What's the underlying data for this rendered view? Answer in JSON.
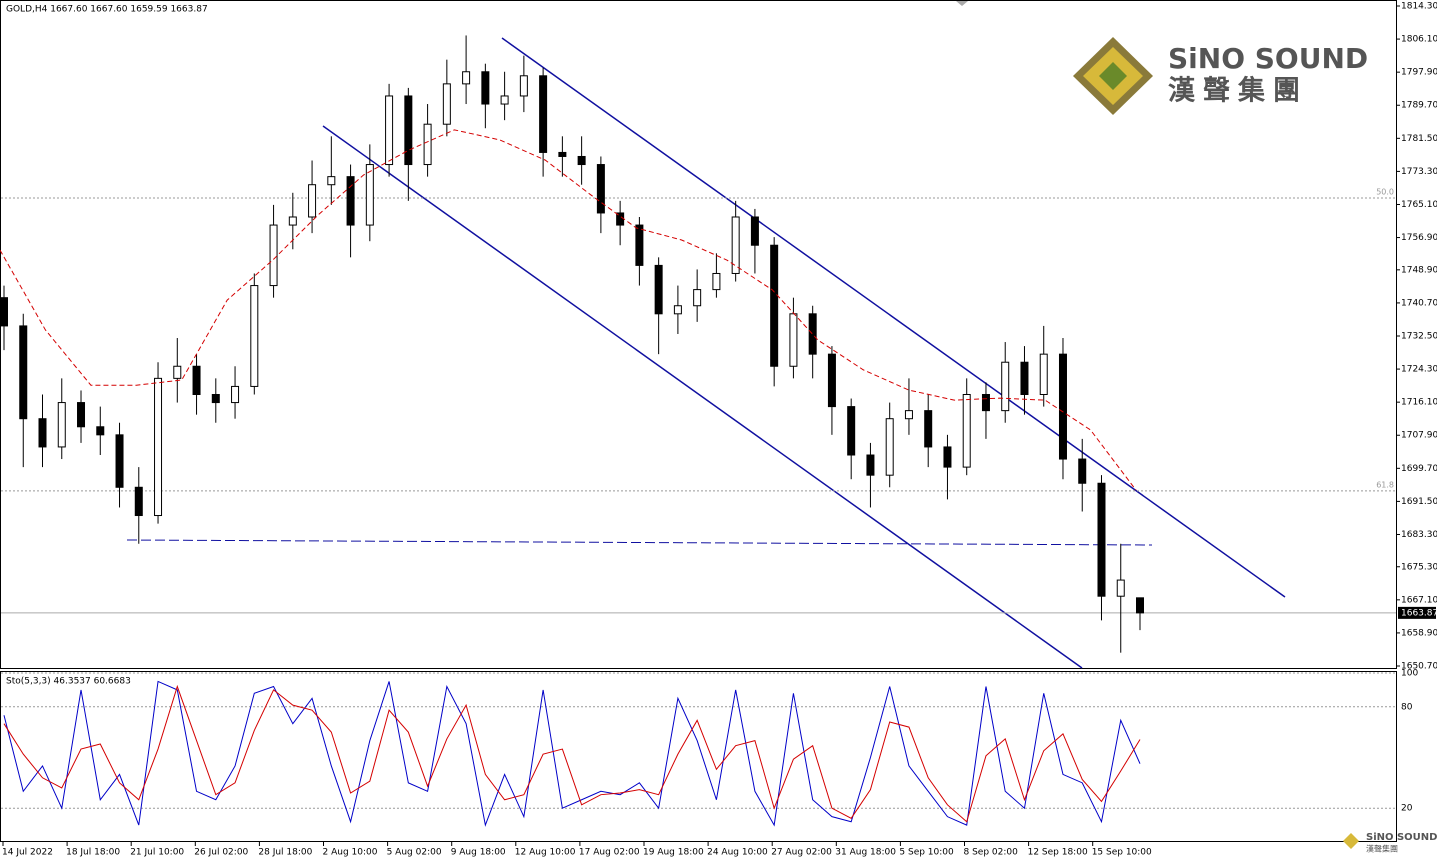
{
  "logo": {
    "name": "SiNO SOUND",
    "chinese": "漢聲集團"
  },
  "chart_data": [
    {
      "type": "candlestick",
      "title": "GOLD,H4  1667.60 1667.60 1659.59 1663.87",
      "xtick_labels": [
        "14 Jul 2022",
        "18 Jul 18:00",
        "21 Jul 10:00",
        "26 Jul 02:00",
        "28 Jul 18:00",
        "2 Aug 10:00",
        "5 Aug 02:00",
        "9 Aug 18:00",
        "12 Aug 10:00",
        "17 Aug 02:00",
        "19 Aug 18:00",
        "24 Aug 10:00",
        "27 Aug 02:00",
        "31 Aug 18:00",
        "5 Sep 10:00",
        "8 Sep 02:00",
        "12 Sep 18:00",
        "15 Sep 10:00"
      ],
      "ohlc": [
        [
          1742,
          1745,
          1729,
          1735
        ],
        [
          1735,
          1738,
          1700,
          1712
        ],
        [
          1712,
          1718,
          1700,
          1705
        ],
        [
          1705,
          1722,
          1702,
          1716
        ],
        [
          1716,
          1719,
          1706,
          1710
        ],
        [
          1710,
          1715,
          1703,
          1708
        ],
        [
          1708,
          1711,
          1690,
          1695
        ],
        [
          1695,
          1700,
          1681,
          1688
        ],
        [
          1688,
          1726,
          1686,
          1722
        ],
        [
          1722,
          1732,
          1716,
          1725
        ],
        [
          1725,
          1728,
          1713,
          1718
        ],
        [
          1718,
          1722,
          1711,
          1716
        ],
        [
          1716,
          1725,
          1712,
          1720
        ],
        [
          1720,
          1748,
          1718,
          1745
        ],
        [
          1745,
          1765,
          1742,
          1760
        ],
        [
          1760,
          1768,
          1754,
          1762
        ],
        [
          1762,
          1776,
          1758,
          1770
        ],
        [
          1770,
          1782,
          1765,
          1772
        ],
        [
          1772,
          1775,
          1752,
          1760
        ],
        [
          1760,
          1780,
          1756,
          1775
        ],
        [
          1775,
          1795,
          1772,
          1792
        ],
        [
          1792,
          1794,
          1766,
          1775
        ],
        [
          1775,
          1790,
          1772,
          1785
        ],
        [
          1785,
          1801,
          1782,
          1795
        ],
        [
          1795,
          1807,
          1790,
          1798
        ],
        [
          1798,
          1800,
          1784,
          1790
        ],
        [
          1790,
          1798,
          1786,
          1792
        ],
        [
          1792,
          1802,
          1788,
          1797
        ],
        [
          1797,
          1799,
          1772,
          1778
        ],
        [
          1778,
          1782,
          1772,
          1777
        ],
        [
          1777,
          1782,
          1770,
          1775
        ],
        [
          1775,
          1777,
          1758,
          1763
        ],
        [
          1763,
          1766,
          1755,
          1760
        ],
        [
          1760,
          1762,
          1745,
          1750
        ],
        [
          1750,
          1752,
          1728,
          1738
        ],
        [
          1738,
          1745,
          1733,
          1740
        ],
        [
          1740,
          1749,
          1736,
          1744
        ],
        [
          1744,
          1753,
          1742,
          1748
        ],
        [
          1748,
          1766,
          1746,
          1762
        ],
        [
          1762,
          1764,
          1748,
          1755
        ],
        [
          1755,
          1757,
          1720,
          1725
        ],
        [
          1725,
          1742,
          1722,
          1738
        ],
        [
          1738,
          1740,
          1722,
          1728
        ],
        [
          1728,
          1730,
          1708,
          1715
        ],
        [
          1715,
          1717,
          1697,
          1703
        ],
        [
          1703,
          1706,
          1690,
          1698
        ],
        [
          1698,
          1716,
          1695,
          1712
        ],
        [
          1712,
          1722,
          1708,
          1714
        ],
        [
          1714,
          1718,
          1700,
          1705
        ],
        [
          1705,
          1708,
          1692,
          1700
        ],
        [
          1700,
          1722,
          1698,
          1718
        ],
        [
          1718,
          1721,
          1707,
          1714
        ],
        [
          1714,
          1731,
          1711,
          1726
        ],
        [
          1726,
          1730,
          1713,
          1718
        ],
        [
          1718,
          1735,
          1715,
          1728
        ],
        [
          1728,
          1732,
          1697,
          1702
        ],
        [
          1702,
          1707,
          1689,
          1696
        ],
        [
          1696,
          1698,
          1662,
          1668
        ],
        [
          1668,
          1681,
          1654,
          1672
        ],
        [
          1667.6,
          1667.6,
          1659.59,
          1663.87
        ]
      ],
      "ma": {
        "color": "#d40000",
        "values": [
          1753.8,
          1734.0,
          1720.3,
          1720.3,
          1721.6,
          1741.4,
          1751.3,
          1762.5,
          1772.4,
          1778.6,
          1783.6,
          1781.1,
          1776.1,
          1767.5,
          1759.3,
          1756.3,
          1751.3,
          1743.9,
          1731.5,
          1724.1,
          1719.1,
          1716.6,
          1717.1,
          1716.6,
          1709.2,
          1694.3
        ]
      },
      "ylim": [
        1650.7,
        1814.3
      ],
      "yticks": [
        {
          "value": 1814.3,
          "label": "1814.30"
        },
        {
          "value": 1806.1,
          "label": "1806.10"
        },
        {
          "value": 1797.9,
          "label": "1797.90"
        },
        {
          "value": 1789.7,
          "label": "1789.70"
        },
        {
          "value": 1781.5,
          "label": "1781.50"
        },
        {
          "value": 1773.3,
          "label": "1773.30"
        },
        {
          "value": 1765.1,
          "label": "1765.10"
        },
        {
          "value": 1756.9,
          "label": "1756.90"
        },
        {
          "value": 1748.9,
          "label": "1748.90"
        },
        {
          "value": 1740.7,
          "label": "1740.70"
        },
        {
          "value": 1732.5,
          "label": "1732.50"
        },
        {
          "value": 1724.3,
          "label": "1724.30"
        },
        {
          "value": 1716.1,
          "label": "1716.10"
        },
        {
          "value": 1707.9,
          "label": "1707.90"
        },
        {
          "value": 1699.7,
          "label": "1699.70"
        },
        {
          "value": 1691.5,
          "label": "1691.50"
        },
        {
          "value": 1683.3,
          "label": "1683.30"
        },
        {
          "value": 1675.3,
          "label": "1675.30"
        },
        {
          "value": 1667.1,
          "label": "1667.10"
        },
        {
          "value": 1658.9,
          "label": "1658.90"
        },
        {
          "value": 1650.7,
          "label": "1650.70"
        }
      ],
      "levels": [
        {
          "value": 1766.7,
          "label": "50.0"
        },
        {
          "value": 1694.1,
          "label": "61.8"
        }
      ],
      "last_price": {
        "value": 1663.87,
        "label": "1663.87"
      }
    },
    {
      "type": "line",
      "title": "Sto(5,3,3) 46.3537 60.6683",
      "series": [
        {
          "color": "#0000c8",
          "values": [
            75,
            30,
            45,
            20,
            90,
            25,
            40,
            10,
            95,
            90,
            30,
            25,
            45,
            88,
            92,
            70,
            85,
            45,
            12,
            60,
            95,
            35,
            30,
            92,
            70,
            10,
            40,
            15,
            90,
            20,
            25,
            30,
            28,
            35,
            20,
            85,
            60,
            25,
            90,
            30,
            10,
            88,
            25,
            15,
            12,
            50,
            92,
            45,
            30,
            15,
            10,
            92,
            30,
            20,
            88,
            40,
            35,
            12,
            72,
            46.3537
          ]
        },
        {
          "color": "#d40000",
          "values": [
            70,
            52,
            38,
            32,
            55,
            58,
            35,
            25,
            55,
            92,
            60,
            28,
            35,
            66,
            90,
            81,
            78,
            65,
            29,
            36,
            78,
            65,
            33,
            61,
            81,
            40,
            25,
            28,
            52,
            55,
            22,
            28,
            29,
            31,
            28,
            52,
            72,
            43,
            57,
            60,
            20,
            49,
            57,
            20,
            14,
            31,
            71,
            68,
            38,
            22,
            12,
            51,
            61,
            25,
            54,
            64,
            37,
            24,
            42,
            60.6683
          ]
        }
      ],
      "ylim": [
        0,
        100
      ],
      "yticks": [
        100,
        80,
        20
      ]
    }
  ]
}
